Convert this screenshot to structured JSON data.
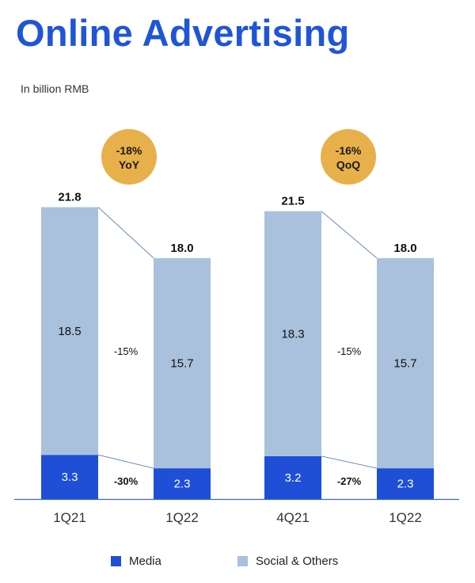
{
  "page": {
    "title": "Online Advertising",
    "unit": "In billion RMB"
  },
  "colors": {
    "media": "#1f4fd6",
    "social": "#a9c1dc",
    "badge": "#e8b04a",
    "connector": "#4a6fb8",
    "axis": "#3a66c4",
    "title": "#1f55d6"
  },
  "chart_data": {
    "type": "bar",
    "stacked": true,
    "categories": [
      "1Q21",
      "1Q22",
      "4Q21",
      "1Q22"
    ],
    "series": [
      {
        "name": "Media",
        "values": [
          3.3,
          2.3,
          3.2,
          2.3
        ]
      },
      {
        "name": "Social & Others",
        "values": [
          18.5,
          15.7,
          18.3,
          15.7
        ]
      }
    ],
    "totals": [
      "21.8",
      "18.0",
      "21.5",
      "18.0"
    ],
    "segment_labels": {
      "media": [
        "3.3",
        "2.3",
        "3.2",
        "2.3"
      ],
      "social": [
        "18.5",
        "15.7",
        "18.3",
        "15.7"
      ]
    },
    "comparisons": [
      {
        "badge": [
          "-18%",
          "YoY"
        ],
        "social_change": "-15%",
        "media_change": "-30%"
      },
      {
        "badge": [
          "-16%",
          "QoQ"
        ],
        "social_change": "-15%",
        "media_change": "-27%"
      }
    ],
    "legend": {
      "position": "bottom",
      "items": [
        "Media",
        "Social & Others"
      ]
    }
  }
}
